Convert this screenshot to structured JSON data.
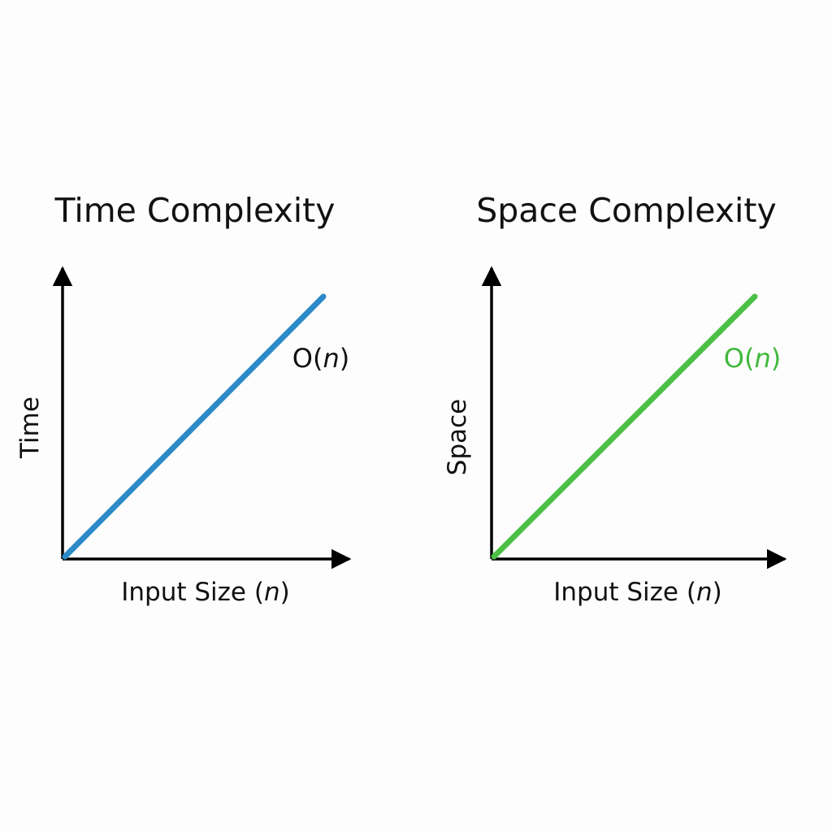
{
  "chart_data": [
    {
      "type": "line",
      "title": "Time Complexity",
      "xlabel": "Input Size (n)",
      "ylabel": "Time",
      "grid": false,
      "color": "#2b8ac7",
      "series": [
        {
          "name": "O(n)",
          "label_prefix": "O(",
          "label_var": "n",
          "label_suffix": ")",
          "x": [
            0,
            1
          ],
          "y": [
            0,
            1
          ],
          "label_color": "#111111"
        }
      ]
    },
    {
      "type": "line",
      "title": "Space Complexity",
      "xlabel": "Input Size (n)",
      "ylabel": "Space",
      "grid": false,
      "color": "#4cc046",
      "series": [
        {
          "name": "O(n)",
          "label_prefix": "O(",
          "label_var": "n",
          "label_suffix": ")",
          "x": [
            0,
            1
          ],
          "y": [
            0,
            1
          ],
          "label_color": "#3fb83c"
        }
      ]
    }
  ]
}
